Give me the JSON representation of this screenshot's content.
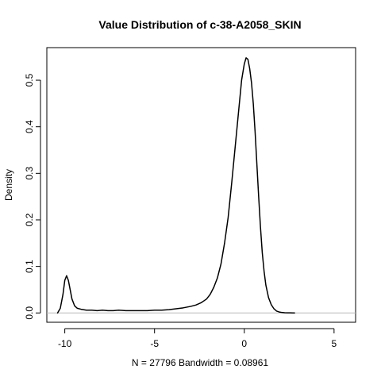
{
  "chart_data": {
    "type": "line",
    "title": "Value Distribution of c-38-A2058_SKIN",
    "xlabel": "N = 27796   Bandwidth = 0.08961",
    "ylabel": "Density",
    "xlim": [
      -11.0,
      6.2
    ],
    "ylim": [
      -0.02,
      0.57
    ],
    "x_ticks": [
      -10,
      -5,
      0,
      5
    ],
    "x_tick_labels": [
      "-10",
      "-5",
      "0",
      "5"
    ],
    "y_ticks": [
      0.0,
      0.1,
      0.2,
      0.3,
      0.4,
      0.5
    ],
    "y_tick_labels": [
      "0.0",
      "0.1",
      "0.2",
      "0.3",
      "0.4",
      "0.5"
    ],
    "grid": false,
    "legend": "none",
    "baseline_y": 0.0,
    "series": [
      {
        "x": [
          -10.4,
          -10.25,
          -10.1,
          -10.0,
          -9.9,
          -9.8,
          -9.7,
          -9.6,
          -9.45,
          -9.3,
          -9.1,
          -8.8,
          -8.5,
          -8.2,
          -7.9,
          -7.6,
          -7.3,
          -7.0,
          -6.6,
          -6.2,
          -5.8,
          -5.4,
          -5.0,
          -4.6,
          -4.2,
          -3.8,
          -3.4,
          -3.0,
          -2.7,
          -2.4,
          -2.1,
          -1.9,
          -1.7,
          -1.5,
          -1.3,
          -1.1,
          -0.9,
          -0.7,
          -0.5,
          -0.3,
          -0.15,
          0.0,
          0.1,
          0.2,
          0.3,
          0.4,
          0.5,
          0.6,
          0.7,
          0.8,
          0.9,
          1.0,
          1.1,
          1.2,
          1.35,
          1.5,
          1.65,
          1.8,
          1.95,
          2.1,
          2.25,
          2.4,
          2.55,
          2.7,
          2.8
        ],
        "y": [
          0.0,
          0.01,
          0.04,
          0.07,
          0.08,
          0.07,
          0.05,
          0.03,
          0.015,
          0.01,
          0.008,
          0.006,
          0.006,
          0.005,
          0.006,
          0.005,
          0.005,
          0.006,
          0.005,
          0.005,
          0.005,
          0.005,
          0.006,
          0.006,
          0.007,
          0.009,
          0.011,
          0.014,
          0.017,
          0.022,
          0.03,
          0.04,
          0.055,
          0.075,
          0.105,
          0.15,
          0.205,
          0.28,
          0.36,
          0.44,
          0.5,
          0.535,
          0.548,
          0.545,
          0.525,
          0.495,
          0.45,
          0.39,
          0.32,
          0.25,
          0.185,
          0.13,
          0.09,
          0.06,
          0.033,
          0.018,
          0.009,
          0.004,
          0.002,
          0.001,
          0.0005,
          0.0003,
          0.0002,
          0.0001,
          0.0
        ]
      }
    ]
  }
}
